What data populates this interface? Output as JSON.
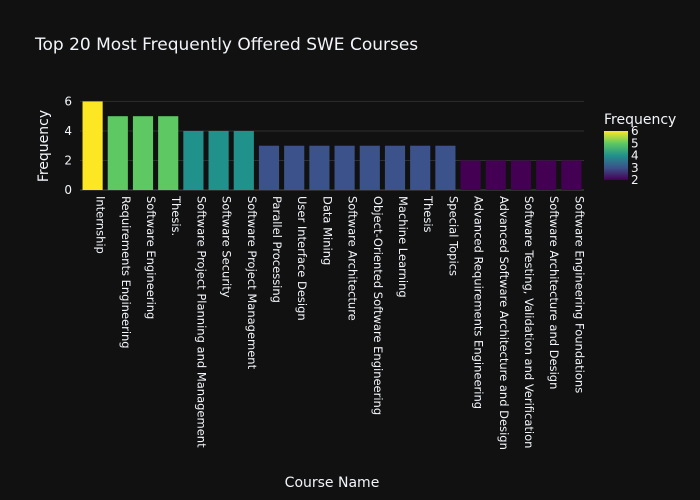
{
  "chart_data": {
    "type": "bar",
    "title": "Top 20 Most Frequently Offered SWE Courses",
    "xlabel": "Course Name",
    "ylabel": "Frequency",
    "categories": [
      "Internship",
      "Requirements Engineering",
      "Software Engineering",
      "Thesis.",
      "Software Project Planning and Management",
      "Software Security",
      "Software Project Management",
      "Parallel Processing",
      "User Interface Design",
      "Data Mining",
      "Software Architecture",
      "Object-Oriented Software Engineering",
      "Machine Learning",
      "Thesis",
      "Special Topics",
      "Advanced Requirements Engineering",
      "Advanced Software Architecture and Design",
      "Software Testing, Validation and Verification",
      "Software Architecture and Design",
      "Software Engineering Foundations"
    ],
    "values": [
      6,
      5,
      5,
      5,
      4,
      4,
      4,
      3,
      3,
      3,
      3,
      3,
      3,
      3,
      3,
      2,
      2,
      2,
      2,
      2
    ],
    "ylim": [
      0,
      6.3
    ],
    "yticks": [
      "0",
      "2",
      "4",
      "6"
    ],
    "grid": true,
    "legend_placement": "right",
    "colorbar": {
      "title": "Frequency",
      "range": [
        2,
        6
      ],
      "tick_labels": [
        "2",
        "3",
        "4",
        "5",
        "6"
      ],
      "colorscale": [
        "#440154",
        "#3b528b",
        "#21918c",
        "#5ec962",
        "#fde725"
      ]
    }
  }
}
